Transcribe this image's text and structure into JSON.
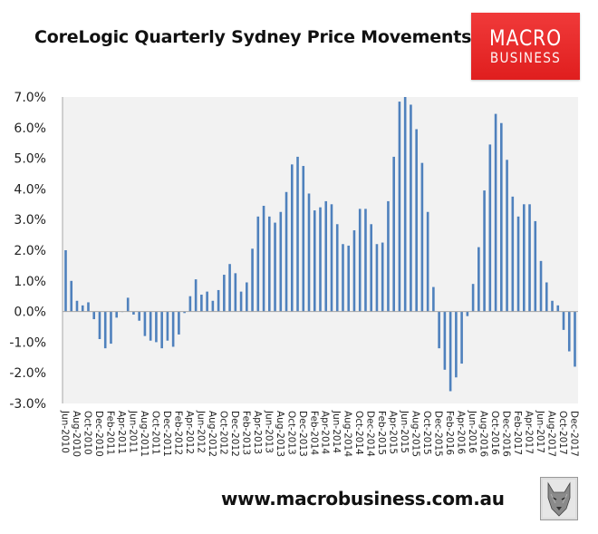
{
  "header": {
    "title": "CoreLogic Quarterly Sydney Price Movements",
    "logo_line1": "MACRO",
    "logo_line2": "BUSINESS"
  },
  "footer": {
    "url": "www.macrobusiness.com.au",
    "logo_icon": "wolf-head-icon"
  },
  "colors": {
    "bar": "#4f81bd",
    "plot_bg": "#f2f2f2",
    "logo_red": "#e8262a",
    "axis": "#a6a6a6"
  },
  "chart_data": {
    "type": "bar",
    "title": "CoreLogic Quarterly Sydney Price Movements",
    "xlabel": "",
    "ylabel": "",
    "ylim": [
      -3.0,
      7.0
    ],
    "yticks": [
      "7.0%",
      "6.0%",
      "5.0%",
      "4.0%",
      "3.0%",
      "2.0%",
      "1.0%",
      "0.0%",
      "-1.0%",
      "-2.0%",
      "-3.0%"
    ],
    "ytick_values": [
      7,
      6,
      5,
      4,
      3,
      2,
      1,
      0,
      -1,
      -2,
      -3
    ],
    "grid": false,
    "legend": null,
    "xtick_labels": [
      "Jun-2010",
      "Aug-2010",
      "Oct-2010",
      "Dec-2010",
      "Feb-2011",
      "Apr-2011",
      "Jun-2011",
      "Aug-2011",
      "Oct-2011",
      "Dec-2011",
      "Feb-2012",
      "Apr-2012",
      "Jun-2012",
      "Aug-2012",
      "Oct-2012",
      "Dec-2012",
      "Feb-2013",
      "Apr-2013",
      "Jun-2013",
      "Aug-2013",
      "Oct-2013",
      "Dec-2013",
      "Feb-2014",
      "Apr-2014",
      "Jun-2014",
      "Aug-2014",
      "Oct-2014",
      "Dec-2014",
      "Feb-2015",
      "Apr-2015",
      "Jun-2015",
      "Aug-2015",
      "Oct-2015",
      "Dec-2015",
      "Feb-2016",
      "Apr-2016",
      "Jun-2016",
      "Aug-2016",
      "Oct-2016",
      "Dec-2016",
      "Feb-2017",
      "Apr-2017",
      "Jun-2017",
      "Aug-2017",
      "Oct-2017",
      "Dec-2017"
    ],
    "categories": [
      "Jun-2010",
      "Jul-2010",
      "Aug-2010",
      "Sep-2010",
      "Oct-2010",
      "Nov-2010",
      "Dec-2010",
      "Jan-2011",
      "Feb-2011",
      "Mar-2011",
      "Apr-2011",
      "May-2011",
      "Jun-2011",
      "Jul-2011",
      "Aug-2011",
      "Sep-2011",
      "Oct-2011",
      "Nov-2011",
      "Dec-2011",
      "Jan-2012",
      "Feb-2012",
      "Mar-2012",
      "Apr-2012",
      "May-2012",
      "Jun-2012",
      "Jul-2012",
      "Aug-2012",
      "Sep-2012",
      "Oct-2012",
      "Nov-2012",
      "Dec-2012",
      "Jan-2013",
      "Feb-2013",
      "Mar-2013",
      "Apr-2013",
      "May-2013",
      "Jun-2013",
      "Jul-2013",
      "Aug-2013",
      "Sep-2013",
      "Oct-2013",
      "Nov-2013",
      "Dec-2013",
      "Jan-2014",
      "Feb-2014",
      "Mar-2014",
      "Apr-2014",
      "May-2014",
      "Jun-2014",
      "Jul-2014",
      "Aug-2014",
      "Sep-2014",
      "Oct-2014",
      "Nov-2014",
      "Dec-2014",
      "Jan-2015",
      "Feb-2015",
      "Mar-2015",
      "Apr-2015",
      "May-2015",
      "Jun-2015",
      "Jul-2015",
      "Aug-2015",
      "Sep-2015",
      "Oct-2015",
      "Nov-2015",
      "Dec-2015",
      "Jan-2016",
      "Feb-2016",
      "Mar-2016",
      "Apr-2016",
      "May-2016",
      "Jun-2016",
      "Jul-2016",
      "Aug-2016",
      "Sep-2016",
      "Oct-2016",
      "Nov-2016",
      "Dec-2016",
      "Jan-2017",
      "Feb-2017",
      "Mar-2017",
      "Apr-2017",
      "May-2017",
      "Jun-2017",
      "Jul-2017",
      "Aug-2017",
      "Sep-2017",
      "Oct-2017",
      "Nov-2017",
      "Dec-2017"
    ],
    "series": [
      {
        "name": "Quarterly change (%)",
        "values": [
          2.0,
          1.0,
          0.35,
          0.2,
          0.3,
          -0.25,
          -0.9,
          -1.2,
          -1.05,
          -0.2,
          0.0,
          0.45,
          -0.1,
          -0.3,
          -0.8,
          -0.95,
          -1.0,
          -1.2,
          -0.95,
          -1.15,
          -0.75,
          -0.05,
          0.5,
          1.05,
          0.55,
          0.65,
          0.35,
          0.7,
          1.2,
          1.55,
          1.25,
          0.65,
          0.95,
          2.05,
          3.1,
          3.45,
          3.1,
          2.9,
          3.25,
          3.9,
          4.8,
          5.05,
          4.75,
          3.85,
          3.3,
          3.4,
          3.6,
          3.5,
          2.85,
          2.2,
          2.15,
          2.65,
          3.35,
          3.35,
          2.85,
          2.2,
          2.25,
          3.6,
          5.05,
          6.85,
          7.0,
          6.75,
          5.95,
          4.85,
          3.25,
          0.8,
          -1.2,
          -1.9,
          -2.6,
          -2.15,
          -1.7,
          -0.15,
          0.9,
          2.1,
          3.95,
          5.45,
          6.45,
          6.15,
          4.95,
          3.75,
          3.1,
          3.5,
          3.5,
          2.95,
          1.65,
          0.95,
          0.35,
          0.2,
          -0.6,
          -1.3,
          -1.8
        ]
      }
    ]
  }
}
